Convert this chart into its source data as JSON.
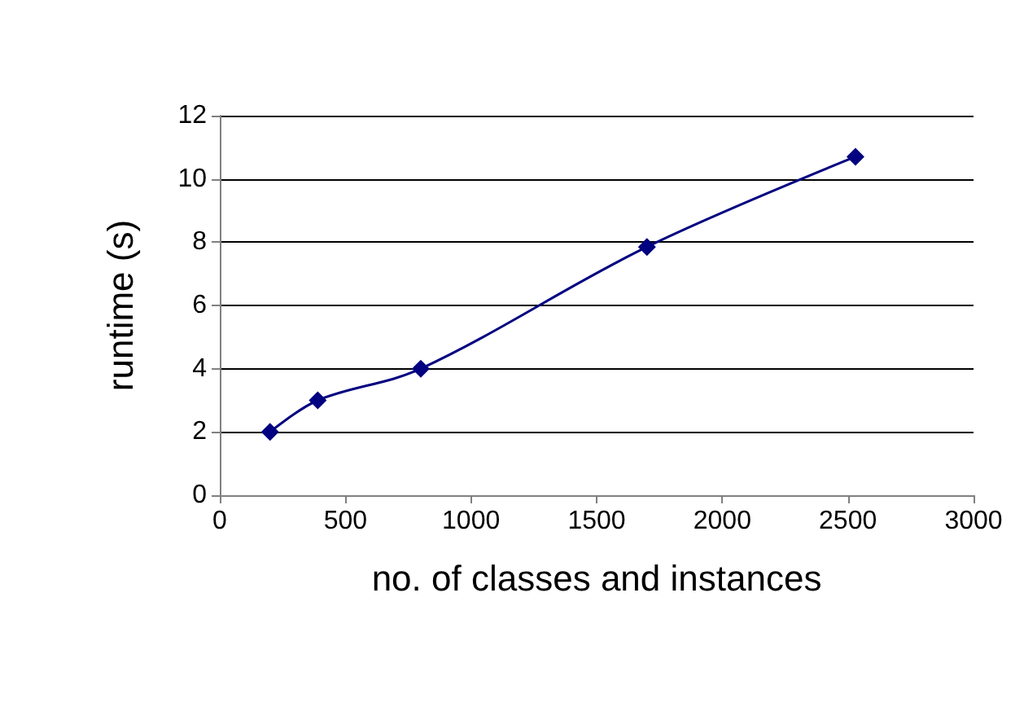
{
  "chart_data": {
    "type": "line",
    "xlabel": "no. of classes and instances",
    "ylabel": "runtime (s)",
    "x": [
      200,
      390,
      800,
      1700,
      2530
    ],
    "series": [
      {
        "color": "#000080",
        "values": [
          2,
          3,
          4,
          7.85,
          10.7
        ]
      }
    ],
    "xlim": [
      0,
      3000
    ],
    "xticks": [
      0,
      500,
      1000,
      1500,
      2000,
      2500,
      3000
    ],
    "ylim": [
      0,
      12
    ],
    "yticks": [
      0,
      2,
      4,
      6,
      8,
      10,
      12
    ],
    "grid": "y",
    "marker": "diamond",
    "line_style": "solid"
  }
}
